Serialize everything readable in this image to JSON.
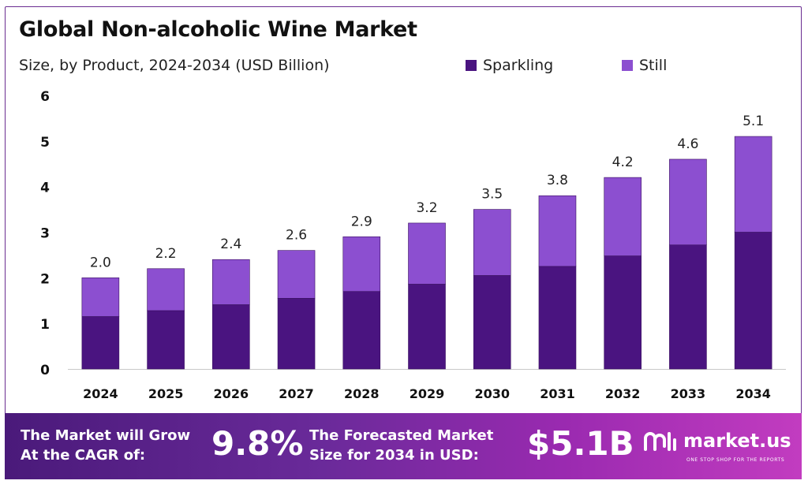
{
  "header": {
    "title": "Global Non-alcoholic Wine Market",
    "subtitle": "Size, by Product, 2024-2034 (USD Billion)"
  },
  "legend": [
    {
      "label": "Sparkling",
      "color": "#4a1480"
    },
    {
      "label": "Still",
      "color": "#8c4fd0"
    }
  ],
  "chart_data": {
    "type": "bar",
    "stacked": true,
    "categories": [
      "2024",
      "2025",
      "2026",
      "2027",
      "2028",
      "2029",
      "2030",
      "2031",
      "2032",
      "2033",
      "2034"
    ],
    "series": [
      {
        "name": "Sparkling",
        "color": "#4a1480",
        "values": [
          1.15,
          1.28,
          1.41,
          1.55,
          1.7,
          1.86,
          2.05,
          2.25,
          2.48,
          2.72,
          3.0
        ]
      },
      {
        "name": "Still",
        "color": "#8c4fd0",
        "values": [
          0.85,
          0.92,
          0.99,
          1.05,
          1.2,
          1.34,
          1.45,
          1.55,
          1.72,
          1.88,
          2.1
        ]
      }
    ],
    "totals_labels": [
      "2.0",
      "2.2",
      "2.4",
      "2.6",
      "2.9",
      "3.2",
      "3.5",
      "3.8",
      "4.2",
      "4.6",
      "5.1"
    ],
    "yticks": [
      "0",
      "1",
      "2",
      "3",
      "4",
      "5",
      "6"
    ],
    "ylim": [
      0,
      6
    ],
    "grid": false,
    "legend_position": "top-right"
  },
  "banner": {
    "cagr_text_line1": "The Market will Grow",
    "cagr_text_line2": "At the CAGR of:",
    "cagr_value": "9.8%",
    "forecast_text_line1": "The Forecasted Market",
    "forecast_text_line2": "Size for 2034 in USD:",
    "forecast_value": "$5.1B",
    "brand_name": "market.us",
    "brand_tagline": "ONE STOP SHOP FOR THE REPORTS"
  }
}
